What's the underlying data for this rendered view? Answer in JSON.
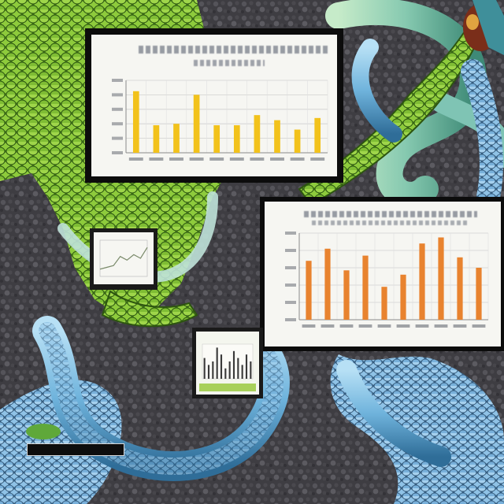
{
  "colors": {
    "background": "#3d3c40",
    "scales_green": "#8cc63f",
    "scales_blue": "#7ab4dc",
    "bar_yellow": "#f2c21b",
    "bar_orange": "#e8832f"
  },
  "chart_data": [
    {
      "type": "bar",
      "title": "",
      "xlabel": "",
      "ylabel": "",
      "series": [
        {
          "values": [
            0.85,
            0.38,
            0.4,
            0.8,
            0.38,
            0.38,
            0.52,
            0.45,
            0.32,
            0.48
          ]
        }
      ],
      "ylim": [
        0,
        1
      ],
      "grid": true
    },
    {
      "type": "bar",
      "title": "",
      "xlabel": "",
      "ylabel": "",
      "series": [
        {
          "values": [
            0.68,
            0.82,
            0.57,
            0.74,
            0.38,
            0.52,
            0.88,
            0.95,
            0.72,
            0.6
          ]
        }
      ],
      "ylim": [
        0,
        1
      ],
      "grid": true
    },
    {
      "type": "line",
      "title": "",
      "series": [
        {
          "values": [
            0.2,
            0.25,
            0.3,
            0.55,
            0.45,
            0.6,
            0.5,
            0.8
          ]
        }
      ]
    },
    {
      "type": "bar",
      "title": "",
      "series": [
        {
          "values": [
            0.6,
            0.4,
            0.5,
            0.9,
            0.7,
            0.3,
            0.5,
            0.8,
            0.6,
            0.4,
            0.7,
            0.5
          ]
        }
      ]
    }
  ]
}
